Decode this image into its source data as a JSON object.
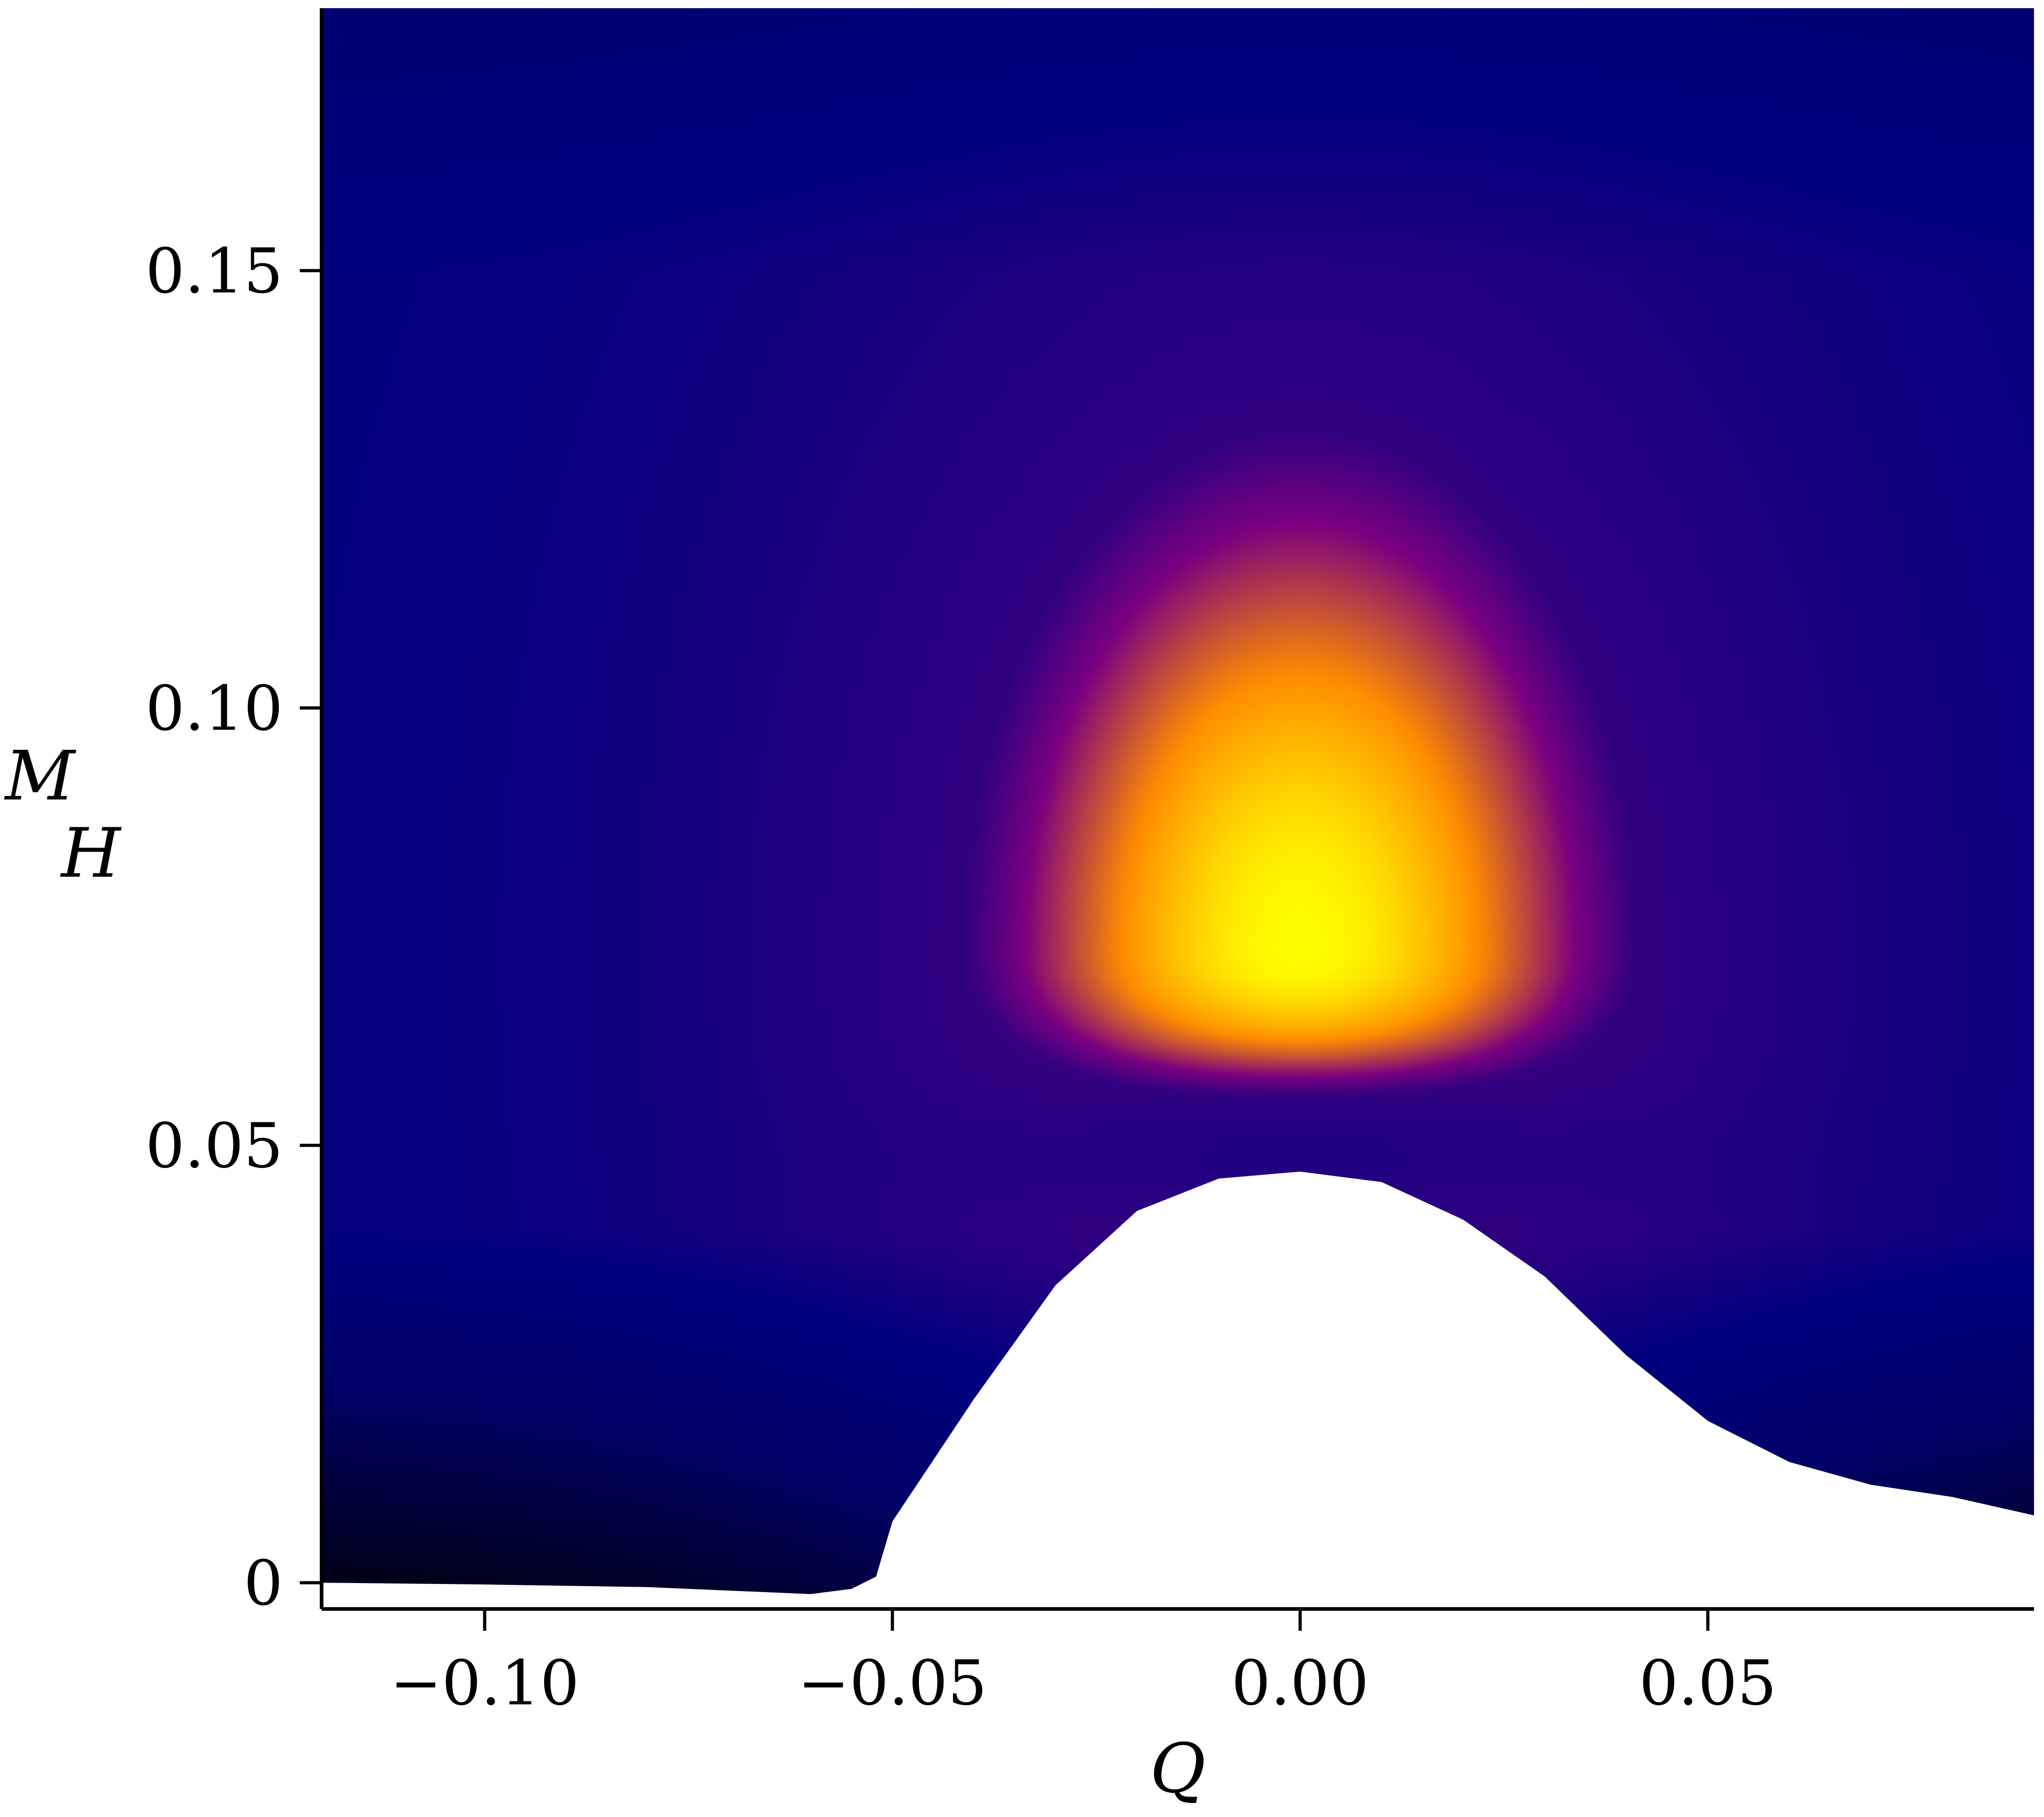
{
  "chart_data": {
    "type": "heatmap",
    "title": "",
    "xlabel": "Q",
    "ylabel_main": "M",
    "ylabel_sub": "H",
    "xlim": [
      -0.12,
      0.09
    ],
    "ylim": [
      -0.003,
      0.18
    ],
    "x_ticks": [
      -0.1,
      -0.05,
      0.0,
      0.05
    ],
    "x_tick_labels": [
      "−0.10",
      "−0.05",
      "0.00",
      "0.05"
    ],
    "y_ticks": [
      0,
      0.05,
      0.1,
      0.15
    ],
    "y_tick_labels": [
      "0",
      "0.05",
      "0.10",
      "0.15"
    ],
    "grid": false,
    "legend": "none",
    "colormap": [
      "#000000",
      "#000066",
      "#000080",
      "#7a0080",
      "#ff8c00",
      "#ffc800",
      "#ffff00"
    ],
    "colormap_name": "black-blue-purple-orange-yellow",
    "peak": {
      "x": 0.0,
      "y": 0.072
    },
    "valley": {
      "x": 0.0,
      "y": 0.053
    },
    "excluded_region_boundary": [
      [
        -0.12,
        0.0
      ],
      [
        -0.1,
        -0.0002
      ],
      [
        -0.08,
        -0.0005
      ],
      [
        -0.06,
        -0.0013
      ],
      [
        -0.055,
        -0.0007
      ],
      [
        -0.052,
        0.0007
      ],
      [
        -0.05,
        0.007
      ],
      [
        -0.04,
        0.021
      ],
      [
        -0.03,
        0.034
      ],
      [
        -0.02,
        0.0425
      ],
      [
        -0.01,
        0.0462
      ],
      [
        0.0,
        0.047
      ],
      [
        0.01,
        0.0458
      ],
      [
        0.02,
        0.0415
      ],
      [
        0.03,
        0.035
      ],
      [
        0.04,
        0.026
      ],
      [
        0.05,
        0.0185
      ],
      [
        0.06,
        0.0138
      ],
      [
        0.07,
        0.0112
      ],
      [
        0.08,
        0.0098
      ],
      [
        0.09,
        0.0077
      ]
    ]
  }
}
